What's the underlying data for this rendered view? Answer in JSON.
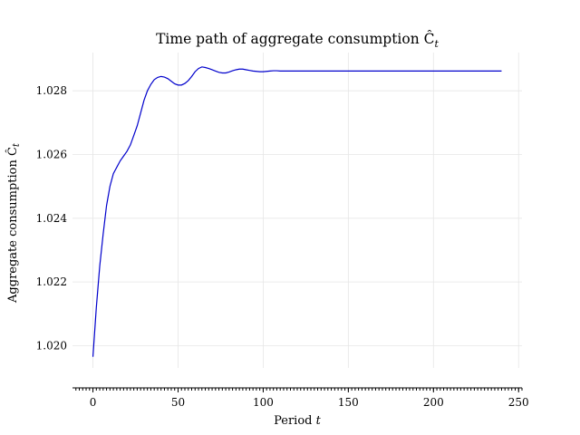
{
  "chart_data": {
    "type": "line",
    "title": "Time path of aggregate consumption Ĉ",
    "title_subscript": "t",
    "xlabel": "Period",
    "xlabel_var": "t",
    "ylabel": "Aggregate consumption Ĉ",
    "ylabel_subscript": "t",
    "xlim": [
      -12,
      252
    ],
    "ylim": [
      1.0193,
      1.0292
    ],
    "xticks": [
      0,
      50,
      100,
      150,
      200,
      250
    ],
    "xtick_labels": [
      "0",
      "50",
      "100",
      "150",
      "200",
      "250"
    ],
    "yticks": [
      1.02,
      1.022,
      1.024,
      1.026,
      1.028
    ],
    "ytick_labels": [
      "1.020",
      "1.022",
      "1.024",
      "1.026",
      "1.028"
    ],
    "grid": true,
    "line_color": "#0000cc",
    "series": [
      {
        "x": [
          0,
          2,
          4,
          6,
          8,
          10,
          12,
          14,
          16,
          18,
          20,
          22,
          24,
          26,
          28,
          30,
          32,
          34,
          36,
          38,
          40,
          42,
          44,
          46,
          48,
          50,
          52,
          54,
          56,
          58,
          60,
          62,
          64,
          66,
          68,
          70,
          72,
          74,
          76,
          78,
          80,
          82,
          84,
          86,
          88,
          90,
          92,
          94,
          96,
          98,
          100,
          102,
          104,
          106,
          108,
          110,
          112,
          114,
          116,
          118,
          120,
          125,
          130,
          140,
          150,
          160,
          180,
          200,
          220,
          240
        ],
        "y": [
          1.01965,
          1.0212,
          1.0225,
          1.0235,
          1.0244,
          1.025,
          1.0254,
          1.0256,
          1.0258,
          1.02595,
          1.0261,
          1.0263,
          1.0266,
          1.0269,
          1.0273,
          1.0277,
          1.028,
          1.0282,
          1.02835,
          1.02842,
          1.02845,
          1.02843,
          1.02838,
          1.0283,
          1.02822,
          1.02818,
          1.02818,
          1.02823,
          1.02832,
          1.02845,
          1.0286,
          1.0287,
          1.02875,
          1.02873,
          1.0287,
          1.02866,
          1.02862,
          1.02858,
          1.02856,
          1.02856,
          1.02859,
          1.02863,
          1.02866,
          1.02868,
          1.02868,
          1.02866,
          1.02864,
          1.02862,
          1.02861,
          1.0286,
          1.0286,
          1.02861,
          1.02862,
          1.02863,
          1.02863,
          1.02862,
          1.02862,
          1.02862,
          1.02862,
          1.02862,
          1.02862,
          1.02862,
          1.02862,
          1.02862,
          1.02862,
          1.02862,
          1.02862,
          1.02862,
          1.02862,
          1.02862
        ]
      }
    ]
  }
}
